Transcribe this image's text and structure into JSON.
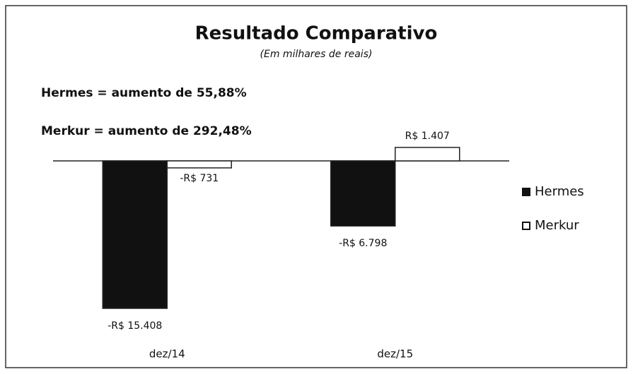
{
  "chart_data": {
    "type": "bar",
    "title": "Resultado Comparativo",
    "subtitle": "(Em milhares de reais)",
    "annotations": [
      "Hermes = aumento de 55,88%",
      "Merkur = aumento de 292,48%"
    ],
    "categories": [
      "dez/14",
      "dez/15"
    ],
    "series": [
      {
        "name": "Hermes",
        "color": "#111111",
        "values": [
          -15408,
          -6798
        ],
        "value_labels": [
          "-R$ 15.408",
          "-R$ 6.798"
        ]
      },
      {
        "name": "Merkur",
        "color": "#ffffff",
        "values": [
          -731,
          1407
        ],
        "value_labels": [
          "-R$ 731",
          "R$ 1.407"
        ]
      }
    ],
    "legend": "right"
  }
}
